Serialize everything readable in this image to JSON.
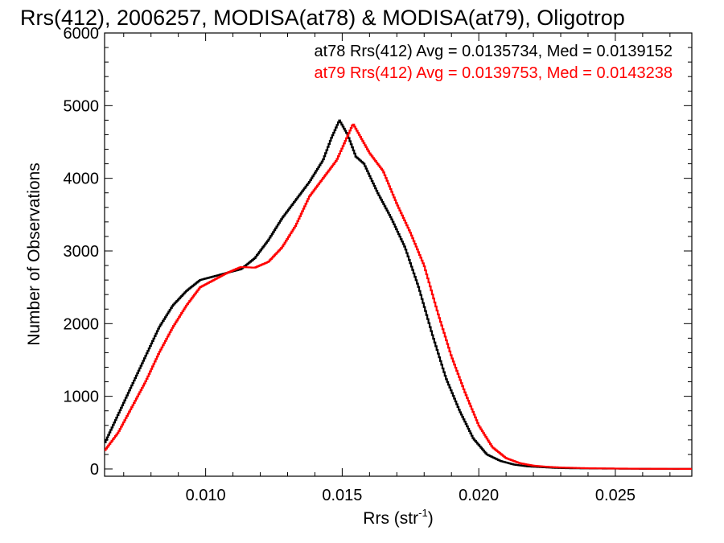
{
  "chart_data": {
    "type": "line",
    "title": "Rrs(412), 2006257, MODISA(at78) & MODISA(at79), Oligotrop",
    "xlabel_main": "Rrs (str",
    "xlabel_sup": "-1",
    "xlabel_tail": ")",
    "ylabel": "Number of Observations",
    "xlim": [
      0.0063,
      0.0278
    ],
    "ylim": [
      -100,
      6000
    ],
    "x_ticks": [
      {
        "value": 0.01,
        "label": "0.010"
      },
      {
        "value": 0.015,
        "label": "0.015"
      },
      {
        "value": 0.02,
        "label": "0.020"
      },
      {
        "value": 0.025,
        "label": "0.025"
      }
    ],
    "y_ticks": [
      {
        "value": 0,
        "label": "0"
      },
      {
        "value": 1000,
        "label": "1000"
      },
      {
        "value": 2000,
        "label": "2000"
      },
      {
        "value": 3000,
        "label": "3000"
      },
      {
        "value": 4000,
        "label": "4000"
      },
      {
        "value": 5000,
        "label": "5000"
      },
      {
        "value": 6000,
        "label": "6000"
      }
    ],
    "legend": [
      {
        "text": "at78 Rrs(412) Avg = 0.0135734, Med = 0.0139152",
        "color": "#000000"
      },
      {
        "text": "at79 Rrs(412) Avg = 0.0139753, Med = 0.0143238",
        "color": "#ff0000"
      }
    ],
    "series": [
      {
        "color": "#000000",
        "x": [
          0.0063,
          0.0068,
          0.0073,
          0.0078,
          0.0083,
          0.0088,
          0.0093,
          0.0098,
          0.0103,
          0.0108,
          0.0113,
          0.0118,
          0.0123,
          0.0128,
          0.0133,
          0.0138,
          0.0143,
          0.0146,
          0.0149,
          0.0152,
          0.0155,
          0.0158,
          0.0163,
          0.0168,
          0.0173,
          0.0178,
          0.0183,
          0.0188,
          0.0193,
          0.0198,
          0.0203,
          0.0208,
          0.0213,
          0.0218,
          0.0223,
          0.0228,
          0.0233,
          0.0243,
          0.0253,
          0.0263,
          0.0278
        ],
        "y": [
          350,
          750,
          1150,
          1550,
          1950,
          2250,
          2450,
          2600,
          2650,
          2700,
          2750,
          2900,
          3150,
          3450,
          3700,
          3950,
          4250,
          4550,
          4800,
          4600,
          4300,
          4200,
          3800,
          3450,
          3050,
          2500,
          1850,
          1250,
          800,
          420,
          200,
          110,
          60,
          35,
          25,
          15,
          10,
          6,
          4,
          2,
          1
        ]
      },
      {
        "color": "#ff0000",
        "x": [
          0.0063,
          0.0068,
          0.0073,
          0.0078,
          0.0083,
          0.0088,
          0.0093,
          0.0098,
          0.0103,
          0.0108,
          0.0113,
          0.0118,
          0.0123,
          0.0128,
          0.0133,
          0.0138,
          0.0143,
          0.0148,
          0.0151,
          0.0154,
          0.0157,
          0.016,
          0.0165,
          0.017,
          0.0175,
          0.018,
          0.0185,
          0.019,
          0.0195,
          0.02,
          0.0205,
          0.021,
          0.0215,
          0.022,
          0.0225,
          0.023,
          0.024,
          0.025,
          0.026,
          0.0278
        ],
        "y": [
          250,
          500,
          850,
          1200,
          1600,
          1950,
          2250,
          2500,
          2600,
          2700,
          2780,
          2770,
          2850,
          3050,
          3350,
          3750,
          4000,
          4250,
          4500,
          4750,
          4550,
          4350,
          4100,
          3650,
          3250,
          2800,
          2150,
          1550,
          1050,
          600,
          300,
          150,
          80,
          45,
          30,
          20,
          10,
          6,
          3,
          1
        ]
      }
    ]
  }
}
